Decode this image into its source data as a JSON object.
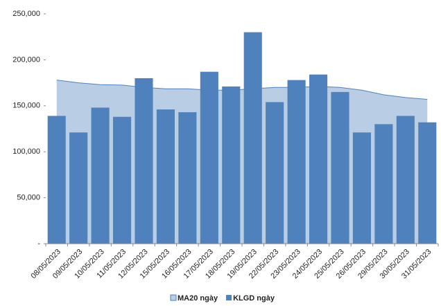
{
  "chart_data": {
    "type": "bar",
    "categories": [
      "08/05/2023",
      "09/05/2023",
      "10/05/2023",
      "11/05/2023",
      "12/05/2023",
      "15/05/2023",
      "16/05/2023",
      "17/05/2023",
      "18/05/2023",
      "19/05/2023",
      "22/05/2023",
      "23/05/2023",
      "24/05/2023",
      "25/05/2023",
      "26/05/2023",
      "29/05/2023",
      "30/05/2023",
      "31/05/2023"
    ],
    "series": [
      {
        "name": "MA20 ngày",
        "type": "area",
        "color": "#b9cde5",
        "line_color": "#4f81bd",
        "values": [
          178000,
          175000,
          173000,
          172500,
          170000,
          168500,
          168500,
          167000,
          167000,
          168500,
          170000,
          170000,
          171000,
          170000,
          167000,
          162000,
          159000,
          157000
        ]
      },
      {
        "name": "KLGD ngày",
        "type": "bar",
        "color": "#4f81bd",
        "values": [
          139000,
          121000,
          148000,
          138000,
          180000,
          146000,
          143000,
          187000,
          171000,
          230000,
          154000,
          178000,
          184000,
          165000,
          121000,
          130000,
          139000,
          132000
        ]
      }
    ],
    "ylim": [
      0,
      250000
    ],
    "yticks": [
      {
        "value": 0,
        "label": "-"
      },
      {
        "value": 50000,
        "label": "50,000"
      },
      {
        "value": 100000,
        "label": "100,000"
      },
      {
        "value": 150000,
        "label": "150,000"
      },
      {
        "value": 200000,
        "label": "200,000"
      },
      {
        "value": 250000,
        "label": "250,000"
      }
    ],
    "legend": "bottom"
  }
}
